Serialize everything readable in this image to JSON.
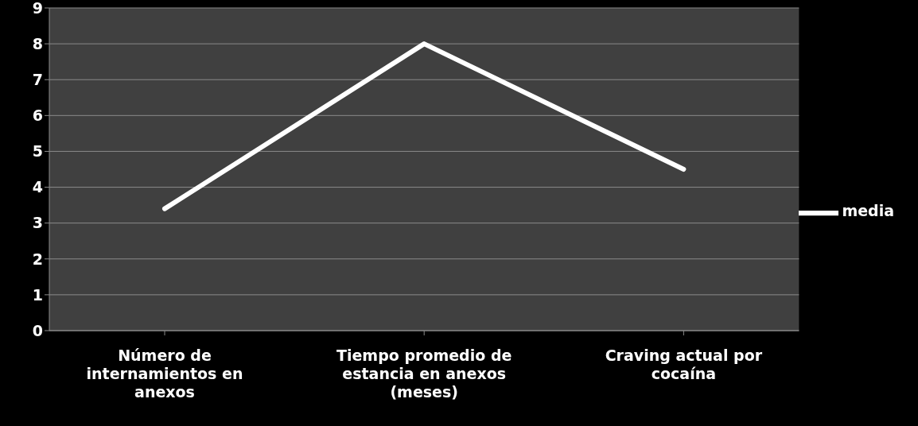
{
  "chart_data": {
    "type": "line",
    "categories": [
      "Número de internamientos en anexos",
      "Tiempo promedio de estancia en anexos (meses)",
      "Craving actual por cocaína"
    ],
    "series": [
      {
        "name": "media",
        "color": "#ffffff",
        "values": [
          3.4,
          8.0,
          4.5
        ]
      }
    ],
    "ylim": [
      0,
      9
    ],
    "yticks": [
      0,
      1,
      2,
      3,
      4,
      5,
      6,
      7,
      8,
      9
    ],
    "grid": "y",
    "legend": "right",
    "marker": "none",
    "line_style": "solid"
  }
}
